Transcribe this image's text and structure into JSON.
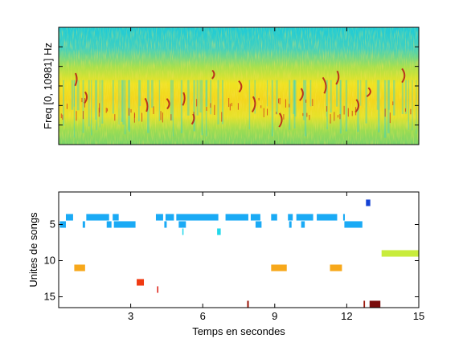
{
  "chart_data": [
    {
      "type": "heatmap",
      "ylabel": "Freq [0, 10981] Hz",
      "xlabel": "",
      "xlim": [
        0,
        15
      ],
      "yticks_count": 6,
      "colormap": "jet",
      "colors": {
        "background": "#17c9d6",
        "mid": "#b8e34a",
        "high": "#f4e21a",
        "peak": "#c0301a"
      },
      "bands": [
        {
          "freq_frac": [
            0.62,
            1.0
          ],
          "level": "low"
        },
        {
          "freq_frac": [
            0.45,
            0.62
          ],
          "level": "mid"
        },
        {
          "freq_frac": [
            0.22,
            0.45
          ],
          "level": "high"
        },
        {
          "freq_frac": [
            0.0,
            0.22
          ],
          "level": "mid-high"
        }
      ]
    },
    {
      "type": "scatter",
      "title": "",
      "xlabel": "Temps en secondes",
      "ylabel": "Unites de songs",
      "xlim": [
        0,
        15
      ],
      "ylim": [
        16.5,
        0.5
      ],
      "xticks": [
        3,
        6,
        9,
        12,
        15
      ],
      "yticks": [
        5,
        10,
        15
      ],
      "segments": [
        {
          "unit": 2,
          "start": 12.8,
          "end": 12.98,
          "color": "#1442d4"
        },
        {
          "unit": 4,
          "start": 0.3,
          "end": 0.6,
          "color": "#1aaaf5"
        },
        {
          "unit": 4,
          "start": 1.15,
          "end": 2.1,
          "color": "#1aaaf5"
        },
        {
          "unit": 4,
          "start": 2.25,
          "end": 2.5,
          "color": "#1aaaf5"
        },
        {
          "unit": 4,
          "start": 4.05,
          "end": 4.35,
          "color": "#1aaaf5"
        },
        {
          "unit": 4,
          "start": 4.45,
          "end": 4.8,
          "color": "#1aaaf5"
        },
        {
          "unit": 4,
          "start": 4.9,
          "end": 6.65,
          "color": "#1aaaf5"
        },
        {
          "unit": 4,
          "start": 6.95,
          "end": 7.9,
          "color": "#1aaaf5"
        },
        {
          "unit": 4,
          "start": 8.0,
          "end": 8.4,
          "color": "#1aaaf5"
        },
        {
          "unit": 4,
          "start": 8.85,
          "end": 9.1,
          "color": "#1aaaf5"
        },
        {
          "unit": 4,
          "start": 9.55,
          "end": 9.75,
          "color": "#1aaaf5"
        },
        {
          "unit": 4,
          "start": 9.9,
          "end": 10.6,
          "color": "#1aaaf5"
        },
        {
          "unit": 4,
          "start": 10.75,
          "end": 11.6,
          "color": "#1aaaf5"
        },
        {
          "unit": 4,
          "start": 11.85,
          "end": 11.92,
          "color": "#1aaaf5"
        },
        {
          "unit": 5,
          "start": 0.05,
          "end": 0.3,
          "color": "#1aaaf5"
        },
        {
          "unit": 5,
          "start": 1.0,
          "end": 1.1,
          "color": "#1aaaf5"
        },
        {
          "unit": 5,
          "start": 2.0,
          "end": 2.2,
          "color": "#1aaaf5"
        },
        {
          "unit": 5,
          "start": 2.3,
          "end": 3.2,
          "color": "#1aaaf5"
        },
        {
          "unit": 5,
          "start": 4.4,
          "end": 4.5,
          "color": "#1aaaf5"
        },
        {
          "unit": 5,
          "start": 5.0,
          "end": 5.3,
          "color": "#1aaaf5"
        },
        {
          "unit": 5,
          "start": 8.2,
          "end": 8.45,
          "color": "#1aaaf5"
        },
        {
          "unit": 5,
          "start": 9.6,
          "end": 9.7,
          "color": "#1aaaf5"
        },
        {
          "unit": 5,
          "start": 10.1,
          "end": 10.25,
          "color": "#1aaaf5"
        },
        {
          "unit": 5,
          "start": 11.9,
          "end": 12.65,
          "color": "#1aaaf5"
        },
        {
          "unit": 6,
          "start": 5.15,
          "end": 5.2,
          "color": "#22d8ea"
        },
        {
          "unit": 6,
          "start": 6.6,
          "end": 6.75,
          "color": "#22d8ea"
        },
        {
          "unit": 9,
          "start": 13.45,
          "end": 15.0,
          "color": "#c8ec3c"
        },
        {
          "unit": 11,
          "start": 0.65,
          "end": 1.1,
          "color": "#f7a81b"
        },
        {
          "unit": 11,
          "start": 8.85,
          "end": 9.5,
          "color": "#f7a81b"
        },
        {
          "unit": 11,
          "start": 11.3,
          "end": 11.8,
          "color": "#f7a81b"
        },
        {
          "unit": 13,
          "start": 3.25,
          "end": 3.55,
          "color": "#f03a12"
        },
        {
          "unit": 14,
          "start": 4.1,
          "end": 4.15,
          "color": "#dd1a10"
        },
        {
          "unit": 16,
          "start": 7.85,
          "end": 7.92,
          "color": "#9b1a0e"
        },
        {
          "unit": 16,
          "start": 12.7,
          "end": 12.76,
          "color": "#9b1a0e"
        },
        {
          "unit": 16,
          "start": 12.95,
          "end": 13.4,
          "color": "#7a0d0d"
        }
      ]
    }
  ]
}
